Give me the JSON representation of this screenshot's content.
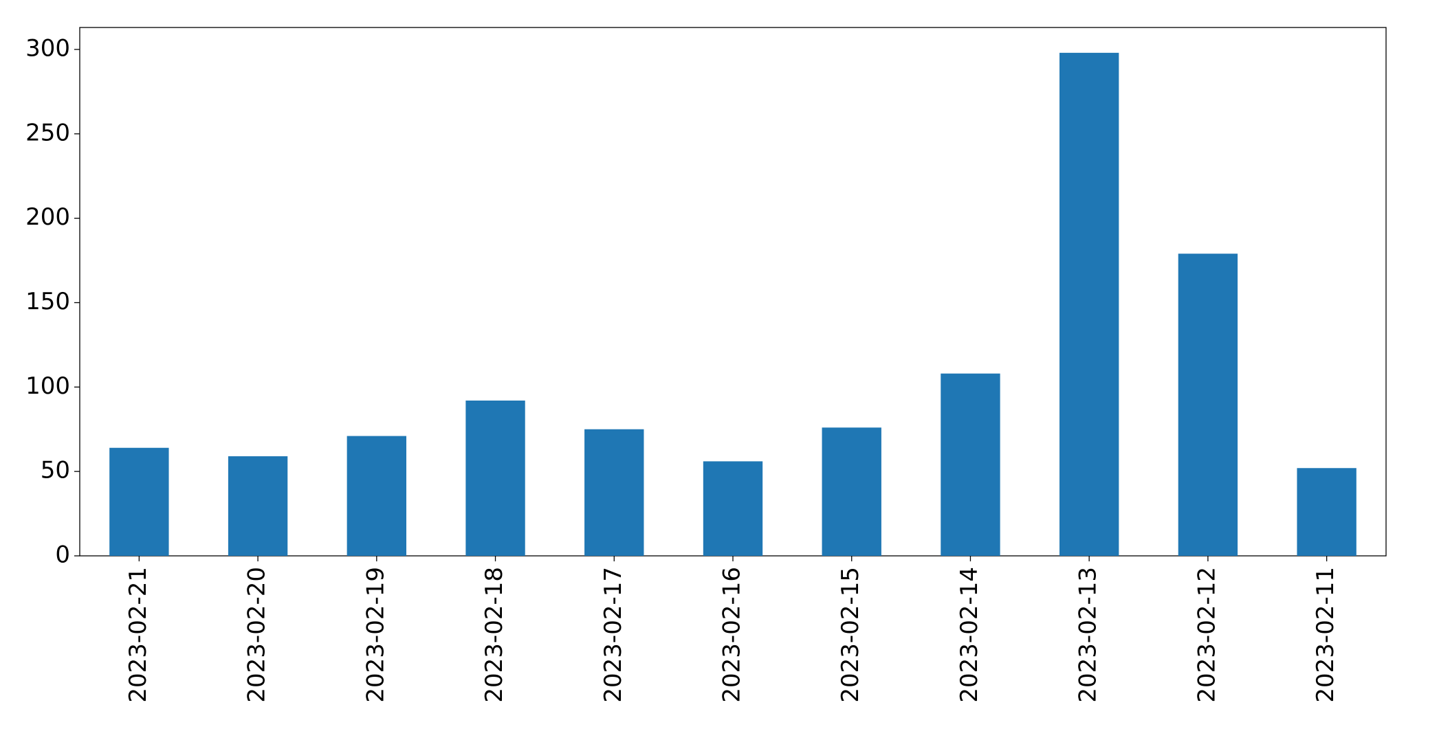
{
  "chart_data": {
    "type": "bar",
    "categories": [
      "2023-02-21",
      "2023-02-20",
      "2023-02-19",
      "2023-02-18",
      "2023-02-17",
      "2023-02-16",
      "2023-02-15",
      "2023-02-14",
      "2023-02-13",
      "2023-02-12",
      "2023-02-11"
    ],
    "values": [
      64,
      59,
      71,
      92,
      75,
      56,
      76,
      108,
      298,
      179,
      52
    ],
    "color": "#1f77b4",
    "ylim": [
      0,
      313
    ],
    "yticks": [
      0,
      50,
      100,
      150,
      200,
      250,
      300
    ],
    "grid": false
  }
}
